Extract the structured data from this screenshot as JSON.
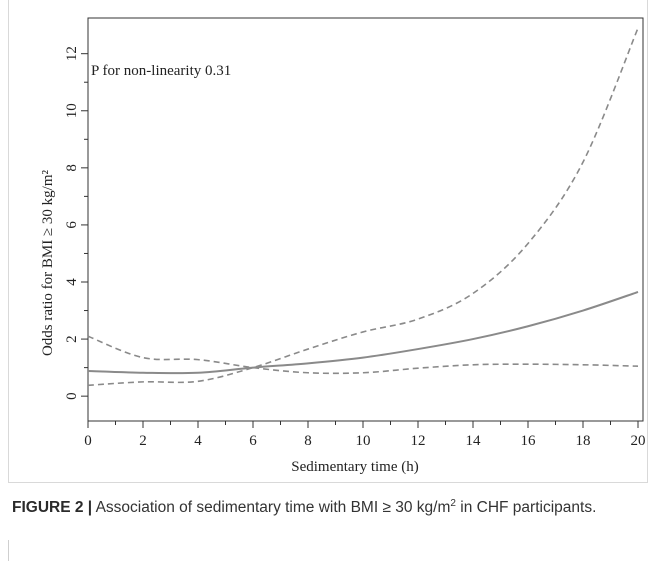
{
  "chart_data": {
    "type": "line",
    "xlabel": "Sedimentary time (h)",
    "ylabel": "Odds ratio for BMI ≥ 30 kg/m²",
    "xlim": [
      0,
      20
    ],
    "ylim": [
      0,
      13
    ],
    "x_ticks": [
      0,
      2,
      4,
      6,
      8,
      10,
      12,
      14,
      16,
      18,
      20
    ],
    "y_ticks": [
      0,
      2,
      4,
      6,
      8,
      10,
      12
    ],
    "annotation": "P for non-linearity 0.31",
    "grid": false,
    "series": [
      {
        "style": "solid",
        "x": [
          0,
          2,
          4,
          6,
          8,
          10,
          12,
          14,
          16,
          18,
          20
        ],
        "y": [
          0.88,
          0.82,
          0.82,
          1.0,
          1.15,
          1.35,
          1.65,
          2.0,
          2.45,
          3.0,
          3.65
        ]
      },
      {
        "style": "dashed",
        "x": [
          0,
          2,
          4,
          6,
          8,
          10,
          12,
          14,
          16,
          18,
          20
        ],
        "y": [
          2.1,
          1.35,
          1.28,
          1.0,
          0.82,
          0.82,
          0.98,
          1.1,
          1.12,
          1.1,
          1.05
        ]
      },
      {
        "style": "dashed",
        "x": [
          0,
          2,
          4,
          6,
          8,
          10,
          12,
          14,
          16,
          18,
          20
        ],
        "y": [
          0.38,
          0.5,
          0.52,
          1.0,
          1.65,
          2.25,
          2.7,
          3.6,
          5.35,
          8.2,
          12.9
        ]
      }
    ],
    "line_color": "#8a8a8a"
  },
  "caption": {
    "lead": "FIGURE 2 |",
    "text_before_sup": " Association of sedimentary time with BMI ≥ 30 kg/m",
    "sup": "2",
    "text_after_sup": " in CHF participants."
  }
}
